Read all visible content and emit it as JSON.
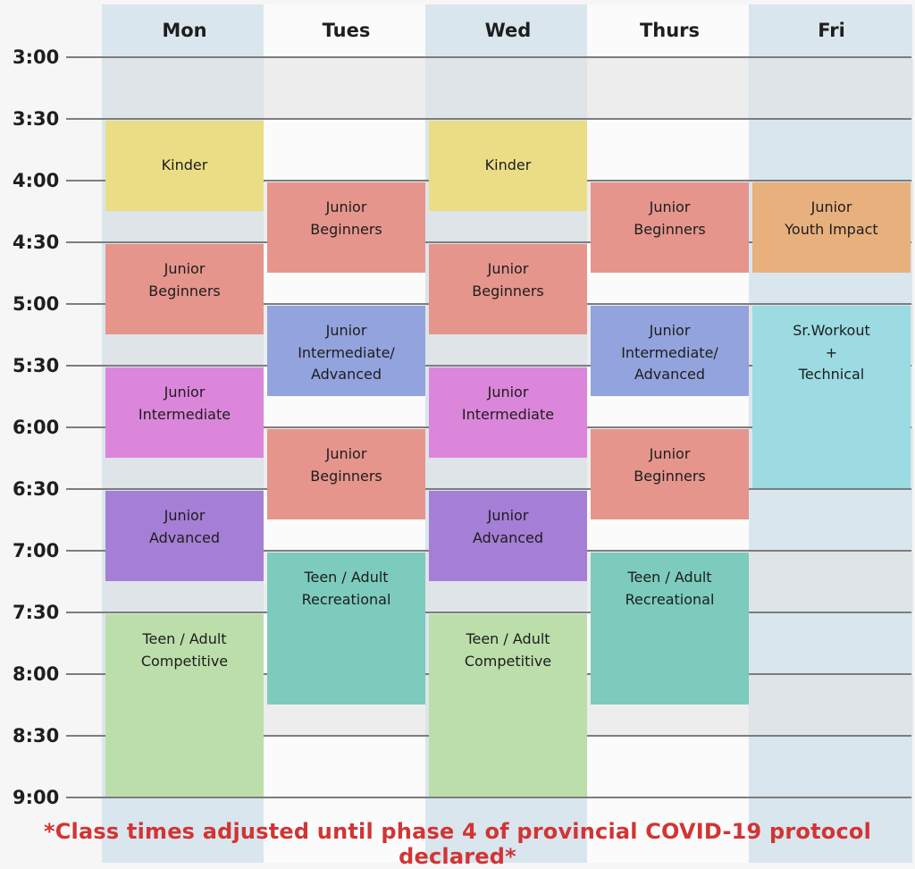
{
  "days": [
    "Mon",
    "Tues",
    "Wed",
    "Thurs",
    "Fri"
  ],
  "times": [
    "3:00",
    "3:30",
    "4:00",
    "4:30",
    "5:00",
    "5:30",
    "6:00",
    "6:30",
    "7:00",
    "7:30",
    "8:00",
    "8:30",
    "9:00"
  ],
  "classes": [
    {
      "day": 0,
      "label": "Kinder",
      "start": "3:30",
      "end": "4:15",
      "color": "#ebdd86"
    },
    {
      "day": 0,
      "label": "Junior\nBeginners",
      "start": "4:30",
      "end": "5:15",
      "color": "#e5958c"
    },
    {
      "day": 0,
      "label": "Junior\nIntermediate",
      "start": "5:30",
      "end": "6:15",
      "color": "#db86db"
    },
    {
      "day": 0,
      "label": "Junior\nAdvanced",
      "start": "6:30",
      "end": "7:15",
      "color": "#a57ed6"
    },
    {
      "day": 0,
      "label": "Teen / Adult\nCompetitive",
      "start": "7:30",
      "end": "9:00",
      "color": "#bcdeaa"
    },
    {
      "day": 1,
      "label": "Junior\nBeginners",
      "start": "4:00",
      "end": "4:45",
      "color": "#e5958c"
    },
    {
      "day": 1,
      "label": "Junior\nIntermediate/\nAdvanced",
      "start": "5:00",
      "end": "5:45",
      "color": "#93a3dd"
    },
    {
      "day": 1,
      "label": "Junior\nBeginners",
      "start": "6:00",
      "end": "6:45",
      "color": "#e5958c"
    },
    {
      "day": 1,
      "label": "Teen / Adult\nRecreational",
      "start": "7:00",
      "end": "8:15",
      "color": "#7ccbbc"
    },
    {
      "day": 2,
      "label": "Kinder",
      "start": "3:30",
      "end": "4:15",
      "color": "#ebdd86"
    },
    {
      "day": 2,
      "label": "Junior\nBeginners",
      "start": "4:30",
      "end": "5:15",
      "color": "#e5958c"
    },
    {
      "day": 2,
      "label": "Junior\nIntermediate",
      "start": "5:30",
      "end": "6:15",
      "color": "#db86db"
    },
    {
      "day": 2,
      "label": "Junior\nAdvanced",
      "start": "6:30",
      "end": "7:15",
      "color": "#a57ed6"
    },
    {
      "day": 2,
      "label": "Teen / Adult\nCompetitive",
      "start": "7:30",
      "end": "9:00",
      "color": "#bcdeaa"
    },
    {
      "day": 3,
      "label": "Junior\nBeginners",
      "start": "4:00",
      "end": "4:45",
      "color": "#e5958c"
    },
    {
      "day": 3,
      "label": "Junior\nIntermediate/\nAdvanced",
      "start": "5:00",
      "end": "5:45",
      "color": "#93a3dd"
    },
    {
      "day": 3,
      "label": "Junior\nBeginners",
      "start": "6:00",
      "end": "6:45",
      "color": "#e5958c"
    },
    {
      "day": 3,
      "label": "Teen / Adult\nRecreational",
      "start": "7:00",
      "end": "8:15",
      "color": "#7ccbbc"
    },
    {
      "day": 4,
      "label": "Junior\nYouth Impact",
      "start": "4:00",
      "end": "4:45",
      "color": "#e8b07d"
    },
    {
      "day": 4,
      "label": "Sr.Workout\n+\nTechnical",
      "start": "5:00",
      "end": "6:30",
      "color": "#9bdbe1"
    }
  ],
  "footnote": "*Class times adjusted until phase 4 of provincial COVID-19 protocol declared*"
}
